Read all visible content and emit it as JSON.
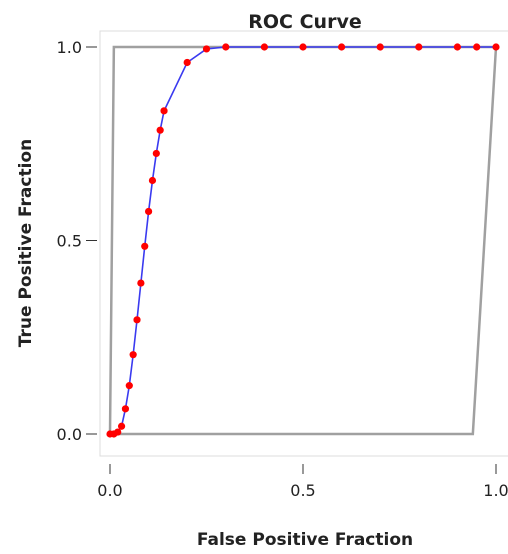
{
  "chart_data": {
    "type": "line",
    "title": "ROC Curve",
    "xlabel": "False Positive Fraction",
    "ylabel": "True Positive Fraction",
    "xlim": [
      0,
      1
    ],
    "ylim": [
      0,
      1
    ],
    "xticks": [
      {
        "value": 0,
        "label": "0.0"
      },
      {
        "value": 0.5,
        "label": "0.5"
      },
      {
        "value": 1,
        "label": "1.0"
      }
    ],
    "yticks": [
      {
        "value": 0,
        "label": "0.0"
      },
      {
        "value": 0.5,
        "label": "0.5"
      },
      {
        "value": 1,
        "label": "1.0"
      }
    ],
    "grid": false,
    "legend": "none",
    "series": [
      {
        "color": "#3a3af0",
        "marker_color": "#ff0000",
        "x": [
          0.0,
          0.01,
          0.02,
          0.03,
          0.04,
          0.05,
          0.06,
          0.07,
          0.08,
          0.09,
          0.1,
          0.11,
          0.12,
          0.13,
          0.14,
          0.2,
          0.25,
          0.3,
          0.4,
          0.5,
          0.6,
          0.7,
          0.8,
          0.9,
          0.95,
          1.0
        ],
        "y": [
          0.0,
          0.0,
          0.005,
          0.02,
          0.065,
          0.125,
          0.205,
          0.295,
          0.39,
          0.485,
          0.575,
          0.655,
          0.725,
          0.785,
          0.835,
          0.96,
          0.995,
          1.0,
          1.0,
          1.0,
          1.0,
          1.0,
          1.0,
          1.0,
          1.0,
          1.0
        ]
      }
    ],
    "reference_curves": [
      {
        "color": "#a0a0a0",
        "x": [
          0.0,
          0.01,
          1.0
        ],
        "y": [
          0.0,
          1.0,
          1.0
        ]
      },
      {
        "color": "#a0a0a0",
        "x": [
          0.0,
          0.94,
          1.0
        ],
        "y": [
          0.0,
          0.0,
          1.0
        ]
      }
    ]
  }
}
